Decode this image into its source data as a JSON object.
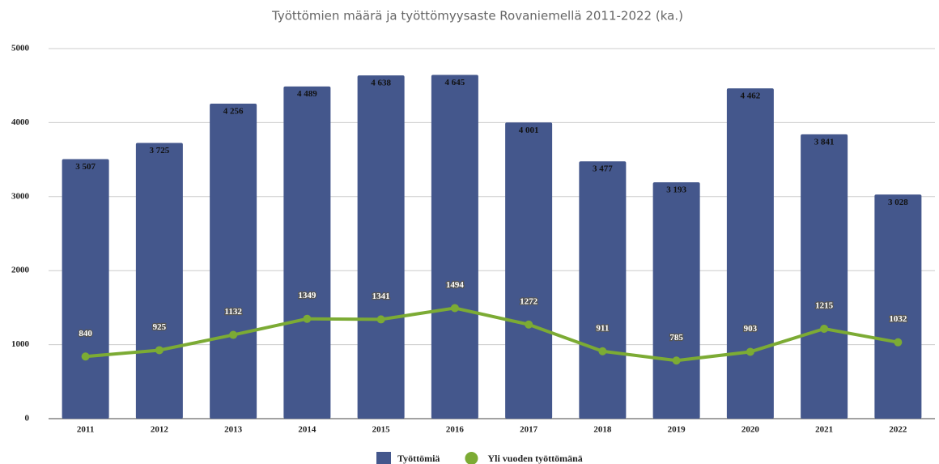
{
  "chart_data": {
    "type": "bar",
    "title": "Työttömien määrä ja työttömyysaste Rovaniemellä 2011-2022 (ka.)",
    "categories": [
      "2011",
      "2012",
      "2013",
      "2014",
      "2015",
      "2016",
      "2017",
      "2018",
      "2019",
      "2020",
      "2021",
      "2022"
    ],
    "series": [
      {
        "name": "Työttömiä",
        "type": "bar",
        "color": "#44578c",
        "values": [
          3507,
          3725,
          4256,
          4489,
          4638,
          4645,
          4001,
          3477,
          3193,
          4462,
          3841,
          3028
        ],
        "value_labels": [
          "3 507",
          "3 725",
          "4 256",
          "4 489",
          "4 638",
          "4 645",
          "4 001",
          "3 477",
          "3 193",
          "4 462",
          "3 841",
          "3 028"
        ]
      },
      {
        "name": "Yli vuoden työttömänä",
        "type": "line",
        "color": "#7cab34",
        "values": [
          840,
          925,
          1132,
          1349,
          1341,
          1494,
          1272,
          911,
          785,
          903,
          1215,
          1032
        ]
      }
    ],
    "ylim": [
      0,
      5000
    ],
    "yticks": [
      0,
      1000,
      2000,
      3000,
      4000,
      5000
    ],
    "grid": true,
    "legend": "bottom"
  }
}
